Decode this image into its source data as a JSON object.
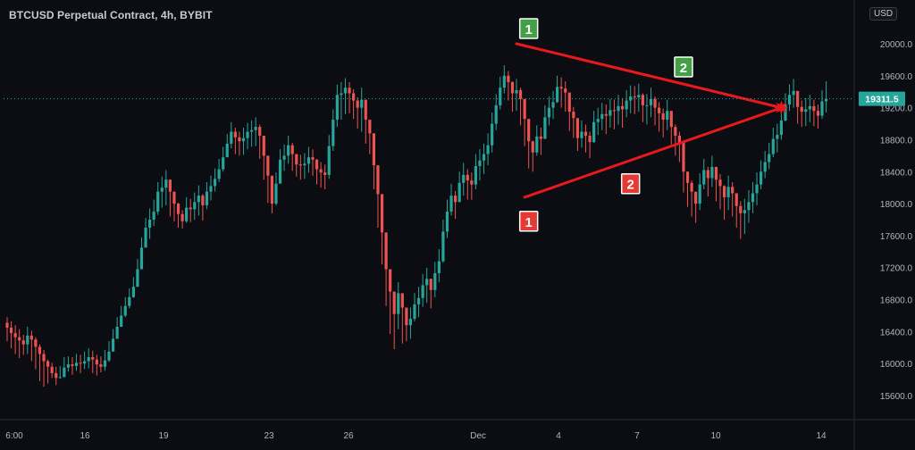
{
  "header": {
    "title": "BTCUSD Perpetual Contract, 4h, BYBIT",
    "currency_button": "USD"
  },
  "colors": {
    "background": "#0c0d12",
    "up": "#26a69a",
    "down": "#ef5350",
    "pattern_line": "#e8191c",
    "label_green": "#43a047",
    "label_red": "#e53935",
    "price_tag": "#26a69a",
    "axis_text": "#b2b5be"
  },
  "chart_data": {
    "type": "candlestick",
    "ylim": [
      15300,
      20300
    ],
    "y_ticks": [
      15600,
      16000,
      16400,
      16800,
      17200,
      17600,
      18000,
      18400,
      18800,
      19200,
      19600,
      20000
    ],
    "y_tick_labels": [
      "15600.0",
      "16000.0",
      "16400.0",
      "16800.0",
      "17200.0",
      "17600.0",
      "18000.0",
      "18400.0",
      "18800.0",
      "19200.0",
      "19600.0",
      "20000.0"
    ],
    "x_tick_labels": [
      "6:00",
      "16",
      "19",
      "23",
      "26",
      "Dec",
      "4",
      "7",
      "10",
      "14"
    ],
    "last_price": 19311.5,
    "last_price_label": "19311.5",
    "trendlines": [
      {
        "from": {
          "bar": 125,
          "price": 20000
        },
        "to": {
          "bar": 190,
          "price": 19200
        }
      },
      {
        "from": {
          "bar": 127,
          "price": 18080
        },
        "to": {
          "bar": 190,
          "price": 19200
        }
      }
    ],
    "apex_marker": {
      "bar": 190,
      "price": 19200
    },
    "touch_labels": [
      {
        "text": "1",
        "color": "green",
        "bar": 128,
        "price": 20190
      },
      {
        "text": "2",
        "color": "green",
        "bar": 166,
        "price": 19710
      },
      {
        "text": "1",
        "color": "red",
        "bar": 128,
        "price": 17780
      },
      {
        "text": "2",
        "color": "red",
        "bar": 153,
        "price": 18250
      }
    ],
    "candles": {
      "close": [
        16450,
        16380,
        16330,
        16290,
        16240,
        16350,
        16300,
        16210,
        16120,
        16030,
        15960,
        15880,
        15820,
        15830,
        15950,
        15990,
        15970,
        16010,
        16000,
        16030,
        16080,
        16050,
        15990,
        15960,
        16040,
        16150,
        16310,
        16460,
        16600,
        16720,
        16830,
        16960,
        17180,
        17450,
        17700,
        17800,
        17900,
        18150,
        18200,
        18300,
        18150,
        18000,
        17870,
        17780,
        17950,
        17930,
        18020,
        18100,
        17980,
        18150,
        18220,
        18310,
        18430,
        18580,
        18750,
        18900,
        18830,
        18780,
        18820,
        18900,
        18920,
        18960,
        18850,
        18600,
        18350,
        18000,
        18250,
        18550,
        18600,
        18730,
        18620,
        18490,
        18480,
        18500,
        18580,
        18550,
        18430,
        18390,
        18360,
        18720,
        19050,
        19360,
        19380,
        19450,
        19380,
        19290,
        19200,
        19300,
        19050,
        18880,
        18480,
        18120,
        17640,
        17180,
        16900,
        16620,
        16880,
        16700,
        16480,
        16560,
        16740,
        16820,
        16980,
        17060,
        16920,
        17130,
        17280,
        17650,
        17900,
        18100,
        18020,
        18260,
        18360,
        18290,
        18240,
        18470,
        18540,
        18620,
        18730,
        19000,
        19230,
        19450,
        19600,
        19520,
        19380,
        19420,
        19310,
        19060,
        18780,
        18640,
        18840,
        18810,
        19080,
        19200,
        19270,
        19460,
        19440,
        19390,
        19150,
        19070,
        18820,
        18900,
        18850,
        18770,
        19020,
        19060,
        19120,
        19100,
        19170,
        19160,
        19220,
        19180,
        19290,
        19340,
        19330,
        19360,
        19230,
        19230,
        19310,
        19200,
        19130,
        19050,
        19160,
        18960,
        18850,
        18760,
        18400,
        18260,
        18150,
        18000,
        18240,
        18420,
        18320,
        18460,
        18300,
        18220,
        18080,
        18210,
        18130,
        17970,
        17880,
        17920,
        18020,
        18130,
        18240,
        18400,
        18520,
        18620,
        18810,
        18860,
        19040,
        19240,
        19360,
        19410,
        19210,
        19150,
        19180,
        19220,
        19160,
        19100,
        19280,
        19311.5
      ],
      "lows": [
        16280,
        16190,
        16120,
        16070,
        16110,
        16120,
        16030,
        15930,
        15780,
        15710,
        15750,
        15820,
        15730,
        15810,
        15860,
        15900,
        15860,
        15910,
        15880,
        15930,
        15940,
        15880,
        15850,
        15890,
        15910,
        16020,
        16180,
        16340,
        16460,
        16580,
        16690,
        16820,
        16960,
        17240,
        17520,
        17560,
        17720,
        17860,
        17950,
        17980,
        17840,
        17780,
        17700,
        17690,
        17760,
        17770,
        17800,
        17850,
        17790,
        17930,
        18040,
        18150,
        18270,
        18400,
        18580,
        18690,
        18620,
        18600,
        18610,
        18680,
        18710,
        18720,
        18560,
        18300,
        18010,
        17880,
        17980,
        18310,
        18410,
        18500,
        18410,
        18340,
        18300,
        18310,
        18390,
        18350,
        18240,
        18200,
        18180,
        18310,
        18660,
        18960,
        19050,
        19120,
        19130,
        19060,
        18940,
        18900,
        18750,
        18620,
        18180,
        17700,
        17240,
        16720,
        16370,
        16180,
        16430,
        16250,
        16280,
        16310,
        16530,
        16580,
        16710,
        16760,
        16690,
        16830,
        17020,
        17260,
        17570,
        17850,
        17810,
        18020,
        18100,
        18050,
        18050,
        18180,
        18290,
        18370,
        18480,
        18640,
        18920,
        19180,
        19380,
        19290,
        19150,
        19160,
        18980,
        18720,
        18440,
        18400,
        18600,
        18610,
        18820,
        18980,
        19060,
        19260,
        19200,
        19150,
        18910,
        18820,
        18660,
        18700,
        18640,
        18570,
        18760,
        18860,
        18920,
        18870,
        18950,
        18930,
        18990,
        18950,
        19080,
        19130,
        19120,
        19150,
        19020,
        18990,
        19080,
        18980,
        18900,
        18830,
        18920,
        18740,
        18600,
        18520,
        18140,
        17960,
        17840,
        17760,
        17920,
        18180,
        18090,
        18210,
        18030,
        17930,
        17800,
        17920,
        17840,
        17700,
        17560,
        17620,
        17760,
        17880,
        17980,
        18180,
        18320,
        18430,
        18580,
        18640,
        18800,
        19030,
        19160,
        19200,
        19000,
        18960,
        18970,
        19020,
        18970,
        18940,
        19060,
        19140
      ],
      "highs": [
        16580,
        16530,
        16480,
        16430,
        16360,
        16460,
        16410,
        16330,
        16240,
        16170,
        16050,
        16010,
        15960,
        15970,
        16080,
        16090,
        16080,
        16120,
        16110,
        16150,
        16190,
        16160,
        16110,
        16090,
        16170,
        16280,
        16430,
        16580,
        16720,
        16830,
        16940,
        17080,
        17310,
        17580,
        17820,
        17940,
        18050,
        18270,
        18340,
        18420,
        18300,
        18140,
        18010,
        17920,
        18080,
        18060,
        18140,
        18230,
        18120,
        18270,
        18350,
        18440,
        18560,
        18710,
        18870,
        19020,
        18950,
        18900,
        18950,
        19010,
        19040,
        19080,
        18990,
        18740,
        18490,
        18140,
        18390,
        18680,
        18740,
        18850,
        18760,
        18620,
        18610,
        18630,
        18710,
        18680,
        18560,
        18520,
        18490,
        18860,
        19180,
        19490,
        19520,
        19570,
        19520,
        19430,
        19330,
        19450,
        19220,
        19040,
        18620,
        18280,
        17800,
        17340,
        17060,
        16780,
        17020,
        16840,
        16620,
        16700,
        16880,
        16960,
        17120,
        17200,
        17060,
        17270,
        17430,
        17800,
        18050,
        18250,
        18160,
        18400,
        18510,
        18430,
        18390,
        18620,
        18680,
        18750,
        18880,
        19140,
        19370,
        19590,
        19730,
        19660,
        19530,
        19560,
        19450,
        19210,
        18930,
        18790,
        18980,
        18950,
        19230,
        19340,
        19410,
        19600,
        19580,
        19530,
        19300,
        19210,
        18960,
        19040,
        18990,
        18900,
        19160,
        19200,
        19260,
        19240,
        19310,
        19300,
        19360,
        19320,
        19420,
        19480,
        19470,
        19500,
        19380,
        19370,
        19450,
        19340,
        19270,
        19190,
        19300,
        19100,
        18990,
        18900,
        18540,
        18400,
        18290,
        18140,
        18380,
        18560,
        18460,
        18600,
        18440,
        18370,
        18230,
        18350,
        18270,
        18110,
        18030,
        18060,
        18170,
        18270,
        18390,
        18540,
        18660,
        18760,
        18950,
        19000,
        19180,
        19380,
        19490,
        19560,
        19360,
        19290,
        19320,
        19360,
        19300,
        19240,
        19420,
        19530
      ]
    }
  }
}
